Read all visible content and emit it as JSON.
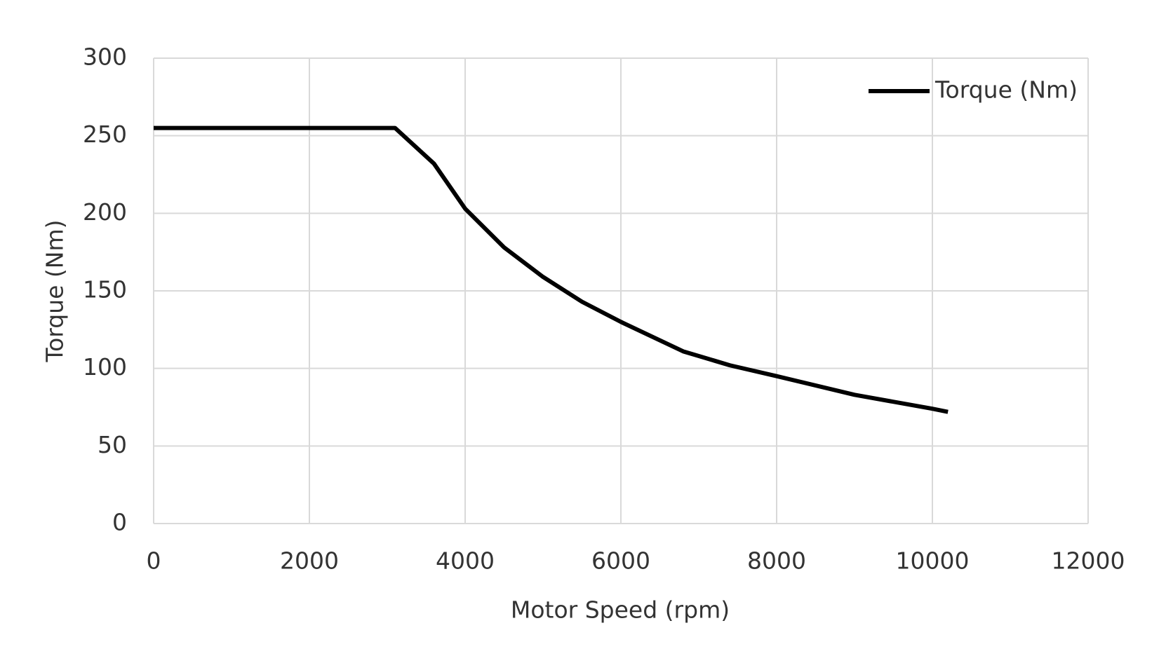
{
  "chart_data": {
    "type": "line",
    "x_label": "Motor Speed (rpm)",
    "y_label": "Torque (Nm)",
    "x": [
      0,
      3100,
      3600,
      4000,
      4500,
      5000,
      5500,
      6000,
      6800,
      7400,
      8000,
      9000,
      10000,
      10200
    ],
    "series": [
      {
        "name": "Torque (Nm)",
        "color": "#000000",
        "values": [
          255,
          255,
          232,
          203,
          178,
          159,
          143,
          130,
          111,
          102,
          95,
          83,
          74,
          72
        ]
      }
    ],
    "xlim": [
      0,
      12000
    ],
    "xticks": [
      0,
      2000,
      4000,
      6000,
      8000,
      10000,
      12000
    ],
    "ylim": [
      0,
      300
    ],
    "yticks": [
      0,
      50,
      100,
      150,
      200,
      250,
      300
    ],
    "grid": true,
    "legend": "top-right"
  }
}
